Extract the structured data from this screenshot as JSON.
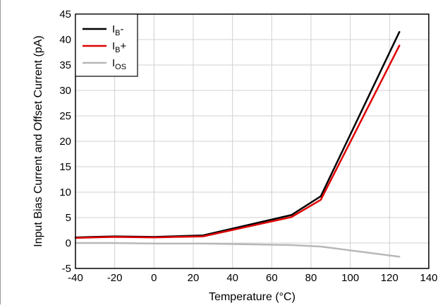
{
  "chart_data": {
    "type": "line",
    "title": "",
    "xlabel": "Temperature (°C)",
    "ylabel": "Input Bias Current and Offset Current (pA)",
    "xlim": [
      -40,
      140
    ],
    "ylim": [
      -5,
      45
    ],
    "xticks": [
      -40,
      -20,
      0,
      20,
      40,
      60,
      80,
      100,
      120,
      140
    ],
    "yticks": [
      -5,
      0,
      5,
      10,
      15,
      20,
      25,
      30,
      35,
      40,
      45
    ],
    "grid": true,
    "legend_position": "top-left",
    "series": [
      {
        "name": "IB-",
        "label_main": "I",
        "label_sub": "B",
        "label_suffix": "-",
        "color": "#000000",
        "x": [
          -40,
          -20,
          0,
          25,
          70,
          85,
          125
        ],
        "y": [
          1.1,
          1.3,
          1.2,
          1.5,
          5.5,
          9.2,
          41.5
        ]
      },
      {
        "name": "IB+",
        "label_main": "I",
        "label_sub": "B",
        "label_suffix": "+",
        "color": "#e00000",
        "x": [
          -40,
          -20,
          0,
          25,
          70,
          85,
          125
        ],
        "y": [
          1.0,
          1.2,
          1.1,
          1.3,
          5.1,
          8.5,
          38.8
        ]
      },
      {
        "name": "IOS",
        "label_main": "I",
        "label_sub": "OS",
        "label_suffix": "",
        "color": "#b8b8b8",
        "x": [
          -40,
          -20,
          0,
          25,
          70,
          85,
          125
        ],
        "y": [
          0.0,
          0.0,
          -0.1,
          -0.1,
          -0.4,
          -0.7,
          -2.7
        ]
      }
    ]
  }
}
